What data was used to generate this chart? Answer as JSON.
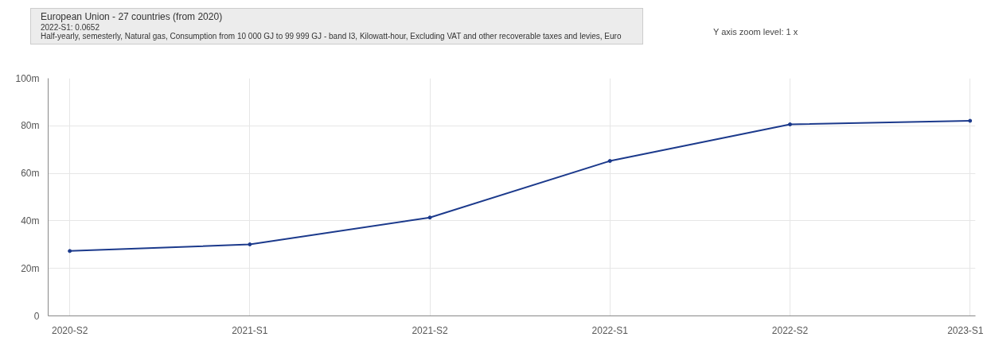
{
  "chart_data": {
    "type": "line",
    "categories": [
      "2020-S2",
      "2021-S1",
      "2021-S2",
      "2022-S1",
      "2022-S2",
      "2023-S1"
    ],
    "series": [
      {
        "color": "#1c3a8c",
        "values": [
          27.3,
          30.1,
          41.4,
          65.2,
          80.6,
          82.1
        ]
      }
    ],
    "ylim": [
      0,
      100
    ],
    "yticks": [
      0,
      {
        "value": 20,
        "label": "20m"
      },
      {
        "value": 40,
        "label": "40m"
      },
      {
        "value": 60,
        "label": "60m"
      },
      {
        "value": 80,
        "label": "80m"
      },
      {
        "value": 100,
        "label": "100m"
      }
    ],
    "annotations": [
      "European Union - 27 countries (from 2020)",
      "2022-S1: 0.0652",
      "Half-yearly, semesterly, Natural gas, Consumption from 10 000 GJ to 99 999 GJ - band I3, Kilowatt-hour, Excluding VAT and other recoverable taxes and levies, Euro",
      "Y axis zoom level: 1 x"
    ],
    "grid": true,
    "marker": "circle",
    "line_style": "solid"
  }
}
